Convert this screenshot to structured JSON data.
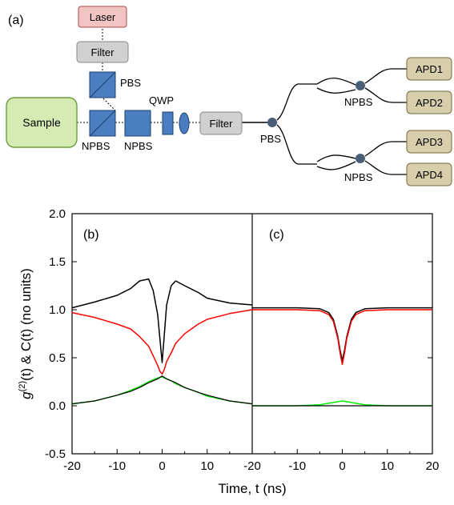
{
  "setup": {
    "panel_label": "(a)",
    "laser": "Laser",
    "filter_top": "Filter",
    "filter_mid": "Filter",
    "sample": "Sample",
    "pbs_top": "PBS",
    "qwp": "QWP",
    "npbs1": "NPBS",
    "npbs2": "NPBS",
    "pbs_split": "PBS",
    "npbs_upper": "NPBS",
    "npbs_lower": "NPBS",
    "apd1": "APD1",
    "apd2": "APD2",
    "apd3": "APD3",
    "apd4": "APD4",
    "colors": {
      "laser_fill": "#f2c4c4",
      "laser_stroke": "#b04a4a",
      "filter_fill": "#d0d0d0",
      "sample_fill": "#d6ebb4",
      "sample_stroke": "#6e9a3c",
      "optic_fill": "#4a7ec0",
      "optic_stroke": "#1f3f6e",
      "apd_fill": "#d7ceac",
      "apd_stroke": "#7a6a3a",
      "node_fill": "#4a5e78"
    }
  },
  "chart_data": [
    {
      "type": "line",
      "panel": "(b)",
      "xlim": [
        -20,
        20
      ],
      "ylim": [
        -0.5,
        2.0
      ],
      "x_ticks": [
        "-20",
        "-10",
        "0",
        "10"
      ],
      "y_ticks": [
        "-0.5",
        "0.0",
        "0.5",
        "1.0",
        "1.5",
        "2.0"
      ],
      "series": [
        {
          "color": "#000000",
          "x": [
            -20,
            -15,
            -10,
            -7,
            -5,
            -3,
            -2,
            -1,
            -0.5,
            0,
            0.5,
            1,
            2,
            3,
            5,
            8,
            10,
            15,
            20
          ],
          "y": [
            1.02,
            1.08,
            1.15,
            1.22,
            1.3,
            1.32,
            1.2,
            0.95,
            0.7,
            0.45,
            0.75,
            1.05,
            1.25,
            1.3,
            1.25,
            1.18,
            1.12,
            1.07,
            1.05
          ]
        },
        {
          "color": "#ff0000",
          "x": [
            -20,
            -15,
            -10,
            -7,
            -5,
            -3,
            -2,
            -1,
            -0.5,
            0,
            0.5,
            1,
            2,
            3,
            5,
            8,
            10,
            15,
            20
          ],
          "y": [
            0.97,
            0.92,
            0.85,
            0.8,
            0.72,
            0.62,
            0.52,
            0.42,
            0.36,
            0.33,
            0.38,
            0.46,
            0.55,
            0.65,
            0.75,
            0.85,
            0.9,
            0.96,
            1.0
          ]
        },
        {
          "color": "#00ee00",
          "x": [
            -20,
            -15,
            -10,
            -7,
            -5,
            -3,
            -2,
            -1,
            0,
            1,
            2,
            3,
            5,
            8,
            10,
            15,
            20
          ],
          "y": [
            0.02,
            0.05,
            0.11,
            0.16,
            0.2,
            0.25,
            0.27,
            0.29,
            0.3,
            0.28,
            0.26,
            0.23,
            0.19,
            0.14,
            0.1,
            0.05,
            0.02
          ]
        },
        {
          "color": "#000000",
          "x": [
            -20,
            -15,
            -10,
            -7,
            -5,
            -3,
            -2,
            -1,
            0,
            1,
            2,
            3,
            5,
            8,
            10,
            15,
            20
          ],
          "y": [
            0.02,
            0.05,
            0.11,
            0.15,
            0.19,
            0.24,
            0.26,
            0.28,
            0.31,
            0.28,
            0.26,
            0.24,
            0.19,
            0.14,
            0.11,
            0.05,
            0.02
          ]
        }
      ]
    },
    {
      "type": "line",
      "panel": "(c)",
      "xlim": [
        -20,
        20
      ],
      "ylim": [
        -0.5,
        2.0
      ],
      "x_ticks": [
        "-20",
        "-10",
        "0",
        "10",
        "20"
      ],
      "series": [
        {
          "color": "#000000",
          "x": [
            -20,
            -10,
            -5,
            -3,
            -2,
            -1,
            -0.5,
            0,
            0.5,
            1,
            2,
            3,
            5,
            10,
            20
          ],
          "y": [
            1.02,
            1.02,
            1.01,
            0.97,
            0.9,
            0.72,
            0.58,
            0.47,
            0.58,
            0.72,
            0.9,
            0.97,
            1.01,
            1.02,
            1.02
          ]
        },
        {
          "color": "#ff0000",
          "x": [
            -20,
            -10,
            -5,
            -3,
            -2,
            -1,
            -0.5,
            0,
            0.5,
            1,
            2,
            3,
            5,
            10,
            20
          ],
          "y": [
            1.0,
            1.0,
            0.99,
            0.95,
            0.88,
            0.7,
            0.55,
            0.43,
            0.55,
            0.7,
            0.88,
            0.95,
            0.99,
            1.0,
            1.0
          ]
        },
        {
          "color": "#00ee00",
          "x": [
            -20,
            -10,
            -5,
            0,
            5,
            10,
            20
          ],
          "y": [
            0.0,
            0.0,
            0.01,
            0.05,
            0.01,
            0.0,
            0.0
          ]
        },
        {
          "color": "#000000",
          "x": [
            -20,
            20
          ],
          "y": [
            0.0,
            0.0
          ]
        }
      ]
    }
  ],
  "axes": {
    "ylabel_prefix": "g",
    "ylabel_sup": "(2)",
    "ylabel_suffix": "(t) & C(t) (no units)",
    "xlabel": "Time, t (ns)"
  }
}
